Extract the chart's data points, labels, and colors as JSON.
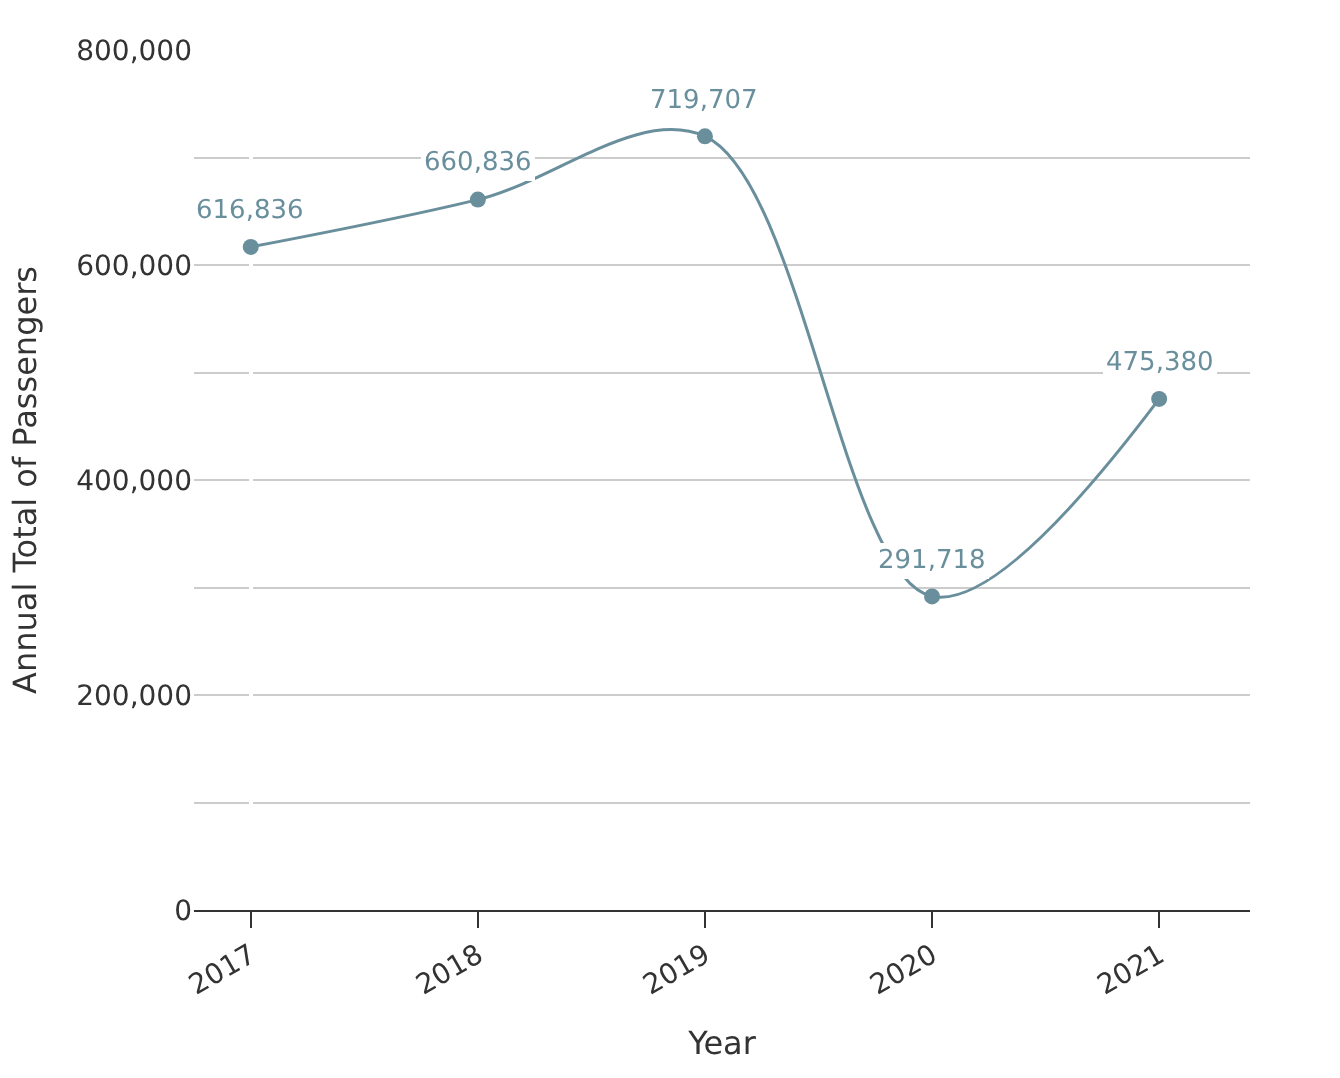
{
  "chart_data": {
    "type": "line",
    "xlabel": "Year",
    "ylabel": "Annual Total of Passengers",
    "categories": [
      "2017",
      "2018",
      "2019",
      "2020",
      "2021"
    ],
    "series": [
      {
        "color": "#6a8f9c",
        "values": [
          616836,
          660836,
          719707,
          291718,
          475380
        ],
        "value_labels": [
          "616,836",
          "660,836",
          "719,707",
          "291,718",
          "475,380"
        ]
      }
    ],
    "ylim": [
      0,
      800000
    ],
    "yticks": [
      {
        "value": 0,
        "label": "0"
      },
      {
        "value": 100000,
        "label": null
      },
      {
        "value": 200000,
        "label": "200,000"
      },
      {
        "value": 300000,
        "label": null
      },
      {
        "value": 400000,
        "label": "400,000"
      },
      {
        "value": 500000,
        "label": null
      },
      {
        "value": 600000,
        "label": "600,000"
      },
      {
        "value": 700000,
        "label": null
      },
      {
        "value": 800000,
        "label": "800,000"
      }
    ],
    "grid": "y",
    "legend": false,
    "marker": "circle",
    "line_style": "solid"
  }
}
